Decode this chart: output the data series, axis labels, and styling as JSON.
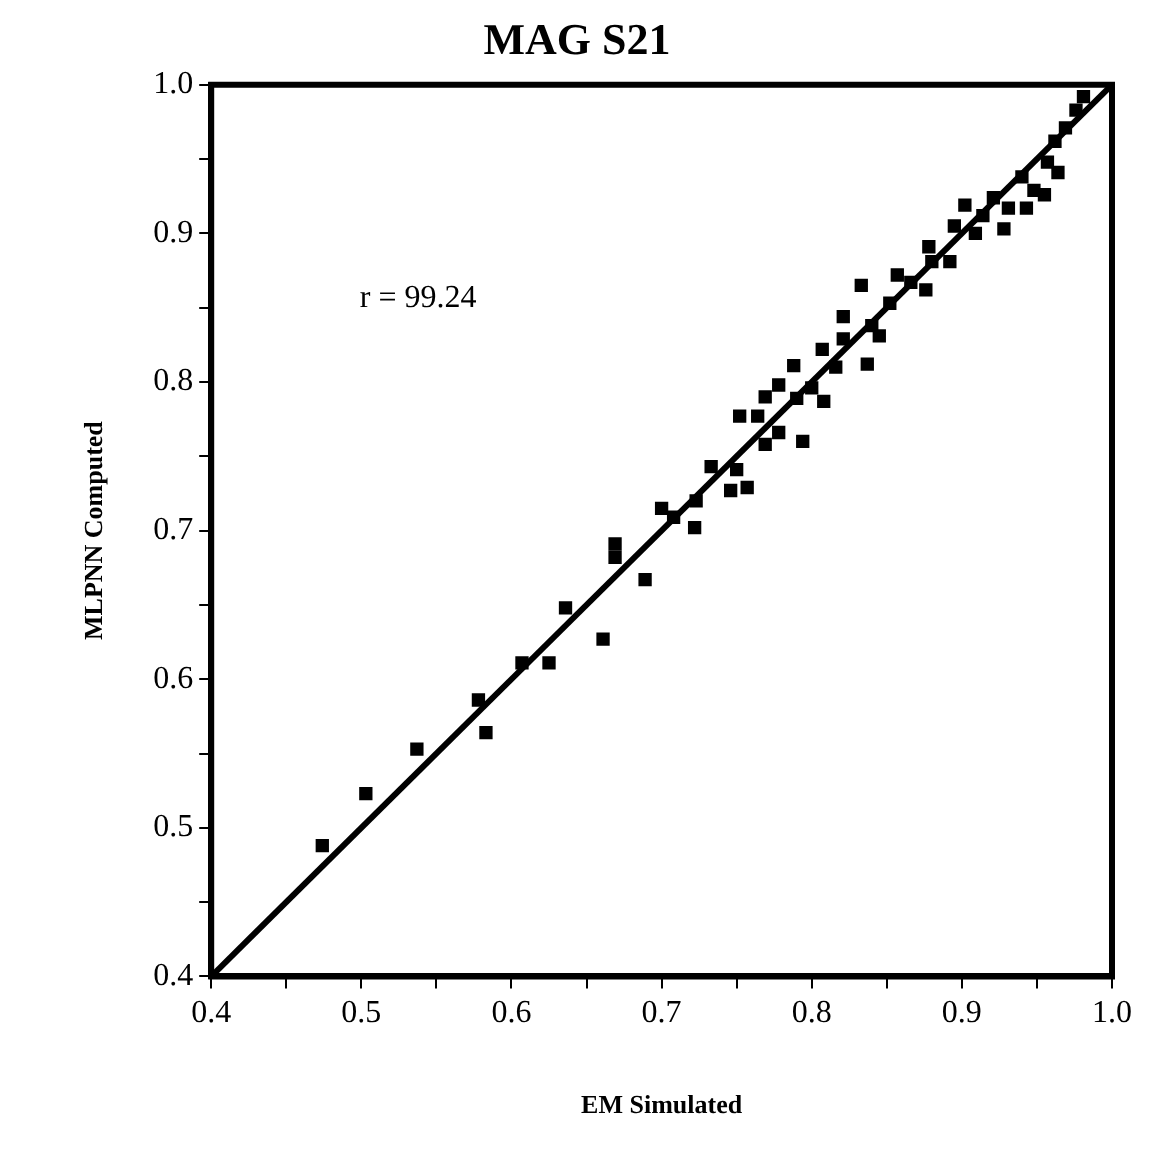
{
  "chart_data": {
    "type": "scatter",
    "title": "MAG S21",
    "xlabel": "EM Simulated",
    "ylabel": "MLPNN Computed",
    "annotations": [
      "r = 99.24"
    ],
    "xlim": [
      0.4,
      1.0
    ],
    "ylim": [
      0.4,
      1.0
    ],
    "xticks": [
      0.4,
      {
        "value": 0.45,
        "label": null
      },
      0.5,
      {
        "value": 0.55,
        "label": null
      },
      0.6,
      {
        "value": 0.65,
        "label": null
      },
      0.7,
      {
        "value": 0.75,
        "label": null
      },
      0.8,
      {
        "value": 0.85,
        "label": null
      },
      0.9,
      {
        "value": 0.95,
        "label": null
      },
      {
        "value": 1.0,
        "label": "1.0"
      }
    ],
    "yticks": [
      0.4,
      {
        "value": 0.45,
        "label": null
      },
      0.5,
      {
        "value": 0.55,
        "label": null
      },
      0.6,
      {
        "value": 0.65,
        "label": null
      },
      0.7,
      {
        "value": 0.75,
        "label": null
      },
      0.8,
      {
        "value": 0.85,
        "label": null
      },
      0.9,
      {
        "value": 0.95,
        "label": null
      },
      {
        "value": 1.0,
        "label": "1.0"
      }
    ],
    "grid": false,
    "legend": false,
    "marker": "square",
    "series": [
      {
        "color": "#000000",
        "x": [
          0.474,
          0.503,
          0.537,
          0.578,
          0.583,
          0.607,
          0.625,
          0.636,
          0.661,
          0.669,
          0.669,
          0.689,
          0.7,
          0.708,
          0.722,
          0.723,
          0.733,
          0.746,
          0.75,
          0.757,
          0.752,
          0.764,
          0.769,
          0.778,
          0.769,
          0.778,
          0.788,
          0.794,
          0.79,
          0.8,
          0.808,
          0.807,
          0.816,
          0.821,
          0.821,
          0.833,
          0.837,
          0.84,
          0.845,
          0.852,
          0.857,
          0.866,
          0.876,
          0.878,
          0.88,
          0.892,
          0.895,
          0.902,
          0.909,
          0.914,
          0.921,
          0.928,
          0.931,
          0.94,
          0.943,
          0.948,
          0.955,
          0.957,
          0.964,
          0.962,
          0.969,
          0.976,
          0.981
        ],
        "values": [
          0.488,
          0.523,
          0.553,
          0.586,
          0.564,
          0.611,
          0.611,
          0.648,
          0.627,
          0.691,
          0.682,
          0.667,
          0.715,
          0.709,
          0.702,
          0.72,
          0.743,
          0.727,
          0.741,
          0.729,
          0.777,
          0.777,
          0.758,
          0.766,
          0.79,
          0.798,
          0.811,
          0.76,
          0.789,
          0.796,
          0.787,
          0.822,
          0.81,
          0.829,
          0.844,
          0.865,
          0.812,
          0.838,
          0.831,
          0.853,
          0.872,
          0.867,
          0.862,
          0.891,
          0.881,
          0.881,
          0.905,
          0.919,
          0.9,
          0.912,
          0.924,
          0.903,
          0.917,
          0.938,
          0.917,
          0.929,
          0.926,
          0.948,
          0.941,
          0.962,
          0.971,
          0.983,
          0.992
        ]
      },
      {
        "type": "line",
        "color": "#000000",
        "marker": "none",
        "line_style": "solid",
        "x": [
          0.4,
          1.0
        ],
        "values": [
          0.4,
          1.0
        ]
      }
    ]
  }
}
